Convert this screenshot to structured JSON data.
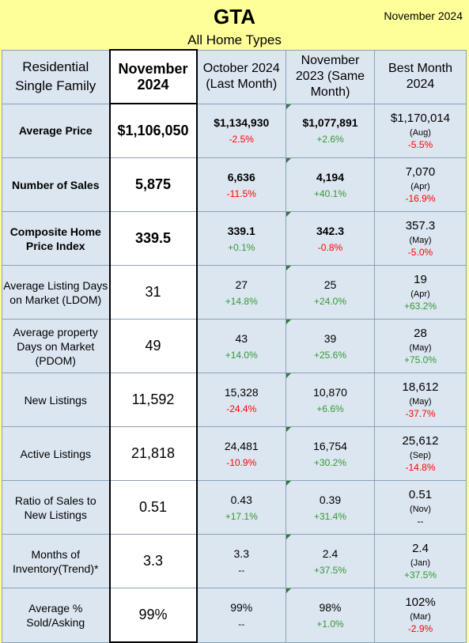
{
  "header": {
    "title": "GTA",
    "subtitle": "All Home Types",
    "month": "November 2024"
  },
  "columns": {
    "residential": "Residential Single Family",
    "current": "November 2024",
    "last_month": "October 2024 (Last Month)",
    "same_month": "November 2023 (Same Month)",
    "best_month": "Best Month 2024"
  },
  "rows": [
    {
      "label": "Average Price",
      "current": "$1,106,050",
      "last_value": "$1,134,930",
      "last_change": "-2.5%",
      "same_value": "$1,077,891",
      "same_change": "+2.6%",
      "best_value": "$1,170,014",
      "best_month": "(Aug)",
      "best_change": "-5.5%"
    },
    {
      "label": "Number of Sales",
      "current": "5,875",
      "last_value": "6,636",
      "last_change": "-11.5%",
      "same_value": "4,194",
      "same_change": "+40.1%",
      "best_value": "7,070",
      "best_month": "(Apr)",
      "best_change": "-16.9%"
    },
    {
      "label": "Composite Home Price Index",
      "current": "339.5",
      "last_value": "339.1",
      "last_change": "+0.1%",
      "same_value": "342.3",
      "same_change": "-0.8%",
      "best_value": "357.3",
      "best_month": "(May)",
      "best_change": "-5.0%"
    },
    {
      "label": "Average Listing Days on Market (LDOM)",
      "current": "31",
      "last_value": "27",
      "last_change": "+14.8%",
      "same_value": "25",
      "same_change": "+24.0%",
      "best_value": "19",
      "best_month": "(Apr)",
      "best_change": "+63.2%"
    },
    {
      "label": "Average property Days on Market (PDOM)",
      "current": "49",
      "last_value": "43",
      "last_change": "+14.0%",
      "same_value": "39",
      "same_change": "+25.6%",
      "best_value": "28",
      "best_month": "(May)",
      "best_change": "+75.0%"
    },
    {
      "label": "New Listings",
      "current": "11,592",
      "last_value": "15,328",
      "last_change": "-24.4%",
      "same_value": "10,870",
      "same_change": "+6.6%",
      "best_value": "18,612",
      "best_month": "(May)",
      "best_change": "-37.7%"
    },
    {
      "label": "Active Listings",
      "current": "21,818",
      "last_value": "24,481",
      "last_change": "-10.9%",
      "same_value": "16,754",
      "same_change": "+30.2%",
      "best_value": "25,612",
      "best_month": "(Sep)",
      "best_change": "-14.8%"
    },
    {
      "label": "Ratio of Sales to New Listings",
      "current": "0.51",
      "last_value": "0.43",
      "last_change": "+17.1%",
      "same_value": "0.39",
      "same_change": "+31.4%",
      "best_value": "0.51",
      "best_month": "(Nov)",
      "best_change": "--"
    },
    {
      "label": "Months of Inventory(Trend)*",
      "current": "3.3",
      "last_value": "3.3",
      "last_change": "--",
      "same_value": "2.4",
      "same_change": "+37.5%",
      "best_value": "2.4",
      "best_month": "(Jan)",
      "best_change": "+37.5%"
    },
    {
      "label": "Average % Sold/Asking",
      "current": "99%",
      "last_value": "99%",
      "last_change": "--",
      "same_value": "98%",
      "same_change": "+1.0%",
      "best_value": "102%",
      "best_month": "(Mar)",
      "best_change": "-2.9%"
    }
  ],
  "colors": {
    "positive": "#339933",
    "negative": "#ff0000",
    "background": "#ffff99",
    "cell": "#dce6f1"
  }
}
